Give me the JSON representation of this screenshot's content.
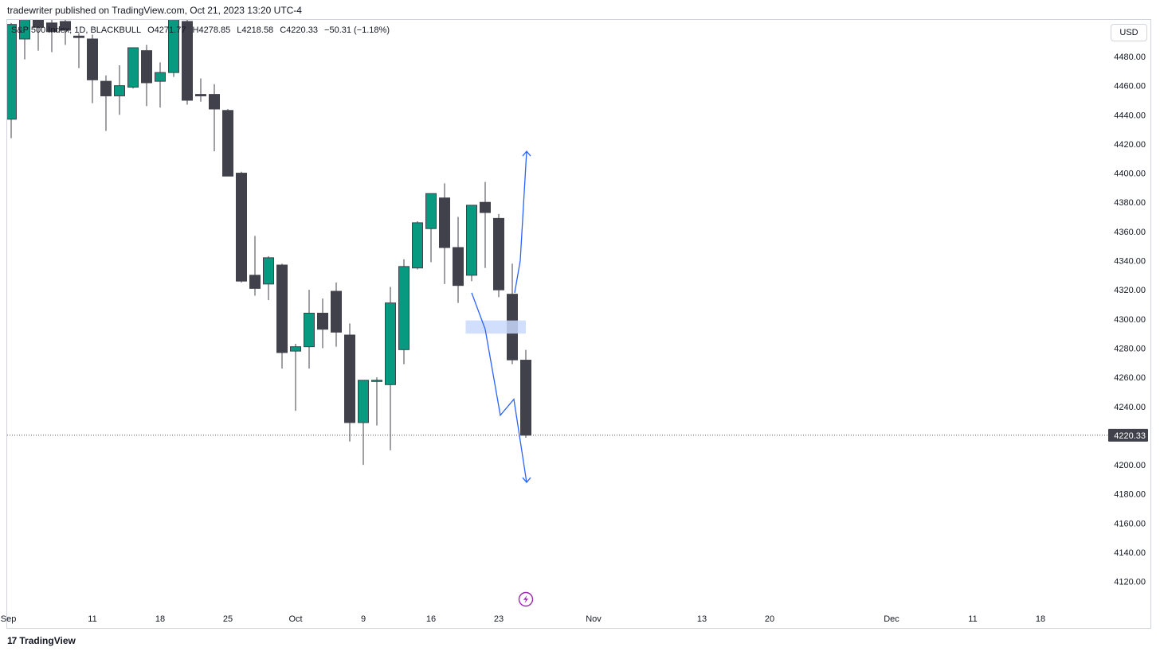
{
  "header": {
    "publish_text": "tradewriter published on TradingView.com, Oct 21, 2023 13:20 UTC-4"
  },
  "legend": {
    "symbol": "S&P 500 Index, 1D, BLACKBULL",
    "open": "O4271.77",
    "high": "H4278.85",
    "low": "L4218.58",
    "close": "C4220.33",
    "change": "−50.31 (−1.18%)"
  },
  "currency_button": {
    "label": "USD"
  },
  "last_price_label": "4220.33",
  "footer": {
    "brand": "TradingView",
    "logo_mark": "17"
  },
  "colors": {
    "up": "#089981",
    "down": "#40414a",
    "drawing": "#2962ff",
    "highlight": "#c9d8fb",
    "event_icon": "#9c27b0"
  },
  "chart_data": {
    "type": "candlestick",
    "title": "",
    "ylim": [
      4104,
      4498
    ],
    "y_ticks": [
      4480,
      4460,
      4440,
      4420,
      4400,
      4380,
      4360,
      4340,
      4320,
      4300,
      4280,
      4260,
      4240,
      4220,
      4200,
      4180,
      4160,
      4140,
      4120
    ],
    "x_ticks": [
      {
        "label": "Sep",
        "slot": -0.2
      },
      {
        "label": "11",
        "slot": 6
      },
      {
        "label": "18",
        "slot": 11
      },
      {
        "label": "25",
        "slot": 16
      },
      {
        "label": "Oct",
        "slot": 21
      },
      {
        "label": "9",
        "slot": 26
      },
      {
        "label": "16",
        "slot": 31
      },
      {
        "label": "23",
        "slot": 36
      },
      {
        "label": "Nov",
        "slot": 43
      },
      {
        "label": "13",
        "slot": 51
      },
      {
        "label": "20",
        "slot": 56
      },
      {
        "label": "Dec",
        "slot": 65
      },
      {
        "label": "11",
        "slot": 71
      },
      {
        "label": "18",
        "slot": 76
      }
    ],
    "candles": [
      {
        "o": 4437,
        "h": 4503,
        "l": 4424,
        "c": 4502
      },
      {
        "o": 4492,
        "h": 4512,
        "l": 4478,
        "c": 4507
      },
      {
        "o": 4505,
        "h": 4510,
        "l": 4484,
        "c": 4500
      },
      {
        "o": 4503,
        "h": 4514,
        "l": 4483,
        "c": 4497
      },
      {
        "o": 4504,
        "h": 4508,
        "l": 4488,
        "c": 4498
      },
      {
        "o": 4494,
        "h": 4496,
        "l": 4472,
        "c": 4493
      },
      {
        "o": 4492,
        "h": 4495,
        "l": 4448,
        "c": 4464
      },
      {
        "o": 4463,
        "h": 4467,
        "l": 4429,
        "c": 4453
      },
      {
        "o": 4453,
        "h": 4474,
        "l": 4440,
        "c": 4460
      },
      {
        "o": 4459,
        "h": 4483,
        "l": 4458,
        "c": 4486
      },
      {
        "o": 4484,
        "h": 4488,
        "l": 4446,
        "c": 4462
      },
      {
        "o": 4463,
        "h": 4476,
        "l": 4445,
        "c": 4469
      },
      {
        "o": 4469,
        "h": 4514,
        "l": 4466,
        "c": 4506
      },
      {
        "o": 4504,
        "h": 4510,
        "l": 4447,
        "c": 4450
      },
      {
        "o": 4454,
        "h": 4465,
        "l": 4449,
        "c": 4453
      },
      {
        "o": 4454,
        "h": 4461,
        "l": 4415,
        "c": 4444
      },
      {
        "o": 4443,
        "h": 4444,
        "l": 4398,
        "c": 4398
      },
      {
        "o": 4400,
        "h": 4401,
        "l": 4325,
        "c": 4326
      },
      {
        "o": 4330,
        "h": 4357,
        "l": 4316,
        "c": 4321
      },
      {
        "o": 4324,
        "h": 4343,
        "l": 4313,
        "c": 4342
      },
      {
        "o": 4337,
        "h": 4338,
        "l": 4266,
        "c": 4277
      },
      {
        "o": 4278,
        "h": 4283,
        "l": 4237,
        "c": 4281
      },
      {
        "o": 4281,
        "h": 4320,
        "l": 4266,
        "c": 4304
      },
      {
        "o": 4304,
        "h": 4314,
        "l": 4280,
        "c": 4293
      },
      {
        "o": 4319,
        "h": 4325,
        "l": 4281,
        "c": 4291
      },
      {
        "o": 4289,
        "h": 4297,
        "l": 4216,
        "c": 4229
      },
      {
        "o": 4229,
        "h": 4258,
        "l": 4200,
        "c": 4258
      },
      {
        "o": 4258,
        "h": 4260,
        "l": 4227,
        "c": 4258
      },
      {
        "o": 4255,
        "h": 4322,
        "l": 4210,
        "c": 4311
      },
      {
        "o": 4279,
        "h": 4341,
        "l": 4269,
        "c": 4336
      },
      {
        "o": 4335,
        "h": 4367,
        "l": 4334,
        "c": 4366
      },
      {
        "o": 4362,
        "h": 4385,
        "l": 4339,
        "c": 4386
      },
      {
        "o": 4383,
        "h": 4393,
        "l": 4324,
        "c": 4349
      },
      {
        "o": 4349,
        "h": 4370,
        "l": 4311,
        "c": 4323
      },
      {
        "o": 4330,
        "h": 4378,
        "l": 4326,
        "c": 4378
      },
      {
        "o": 4380,
        "h": 4394,
        "l": 4335,
        "c": 4373
      },
      {
        "o": 4369,
        "h": 4372,
        "l": 4315,
        "c": 4320
      },
      {
        "o": 4317,
        "h": 4338,
        "l": 4269,
        "c": 4272
      },
      {
        "o": 4271.77,
        "h": 4278.85,
        "l": 4218.58,
        "c": 4220.33
      }
    ],
    "last_price": 4220.33
  }
}
